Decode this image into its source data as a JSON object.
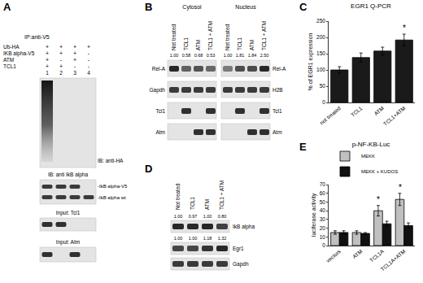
{
  "panels": {
    "A": {
      "letter": "A",
      "ip": "IP:anti-V5",
      "conditions": [
        {
          "name": "Ub-HA",
          "signs": [
            "+",
            "+",
            "+",
            "+"
          ]
        },
        {
          "name": "IKB alpha-V5",
          "signs": [
            "+",
            "+",
            "+",
            "-"
          ]
        },
        {
          "name": "ATM",
          "signs": [
            "+",
            "-",
            "+",
            "-"
          ]
        },
        {
          "name": "TCL1",
          "signs": [
            "+",
            "+",
            "-",
            "-"
          ]
        }
      ],
      "lanes": [
        "1",
        "2",
        "3",
        "4"
      ],
      "blots": [
        {
          "label": "IB: anti-HA"
        },
        {
          "label": "IB: anti IkB alpha",
          "bands": [
            "-IkB alpha-V5",
            "-IkB alpha wt"
          ]
        },
        {
          "label": "Input: Tcl1"
        },
        {
          "label": "Input: Atm"
        }
      ]
    },
    "B": {
      "letter": "B",
      "columns": [
        "Not treated",
        "TCL1",
        "ATM",
        "TCL1 + ATM"
      ],
      "fractions": [
        {
          "title": "Cytosol",
          "values": [
            "1.00",
            "0.58",
            "0.68",
            "0.53"
          ],
          "rows": [
            "Rel-A",
            "Gapdh",
            "Tcl1",
            "Atm"
          ]
        },
        {
          "title": "Nucleus",
          "values": [
            "1.00",
            "1.81",
            "1.84",
            "2.50"
          ],
          "rows": [
            "Rel-A",
            "H2B",
            "Tcl1",
            "Atm"
          ]
        }
      ]
    },
    "D": {
      "letter": "D",
      "columns": [
        "Not treated",
        "TCL1",
        "ATM",
        "TCL1 + ATM"
      ],
      "rows": [
        {
          "name": "IkB alpha",
          "values": [
            "1.00",
            "0.97",
            "1.00",
            "0.80"
          ]
        },
        {
          "name": "Egr1",
          "values": [
            "1.00",
            "1.00",
            "1.18",
            "1.32"
          ]
        },
        {
          "name": "Gapdh"
        }
      ]
    }
  },
  "chart_data": [
    {
      "panel": "C",
      "type": "bar",
      "title": "EGR1 Q-PCR",
      "y_label": "% of EGR1 expression",
      "categories": [
        "not treated",
        "TCL1",
        "ATM",
        "TCL1+ATM"
      ],
      "values": [
        100,
        138,
        158,
        192
      ],
      "errors": [
        10,
        14,
        12,
        18
      ],
      "color": "#1a1a1a",
      "ylim": [
        0,
        250
      ],
      "yticks": [
        0,
        50,
        100,
        150,
        200,
        250
      ],
      "grid": false,
      "annotations": [
        {
          "category": "TCL1+ATM",
          "text": "*"
        }
      ]
    },
    {
      "panel": "E",
      "type": "bar",
      "title": "p-NF-KB-Luc",
      "y_label": "luciferase activity",
      "categories": [
        "vectors",
        "ATM",
        "TCL1A",
        "TCL1A+ATM"
      ],
      "series": [
        {
          "name": "MEKK",
          "color": "#c0c0c0",
          "values": [
            15,
            15,
            40,
            53
          ],
          "errors": [
            2,
            2,
            6,
            7
          ]
        },
        {
          "name": "MEKK + KUDOS",
          "color": "#111111",
          "values": [
            15,
            14,
            25,
            23
          ],
          "errors": [
            2,
            1,
            3,
            3
          ]
        }
      ],
      "ylim": [
        0,
        70
      ],
      "yticks": [
        0,
        10,
        20,
        30,
        40,
        50,
        60,
        70
      ],
      "grid": false,
      "legend": "top",
      "annotations": [
        {
          "category": "TCL1A",
          "text": "*"
        },
        {
          "category": "TCL1A+ATM",
          "text": "*"
        }
      ]
    }
  ]
}
